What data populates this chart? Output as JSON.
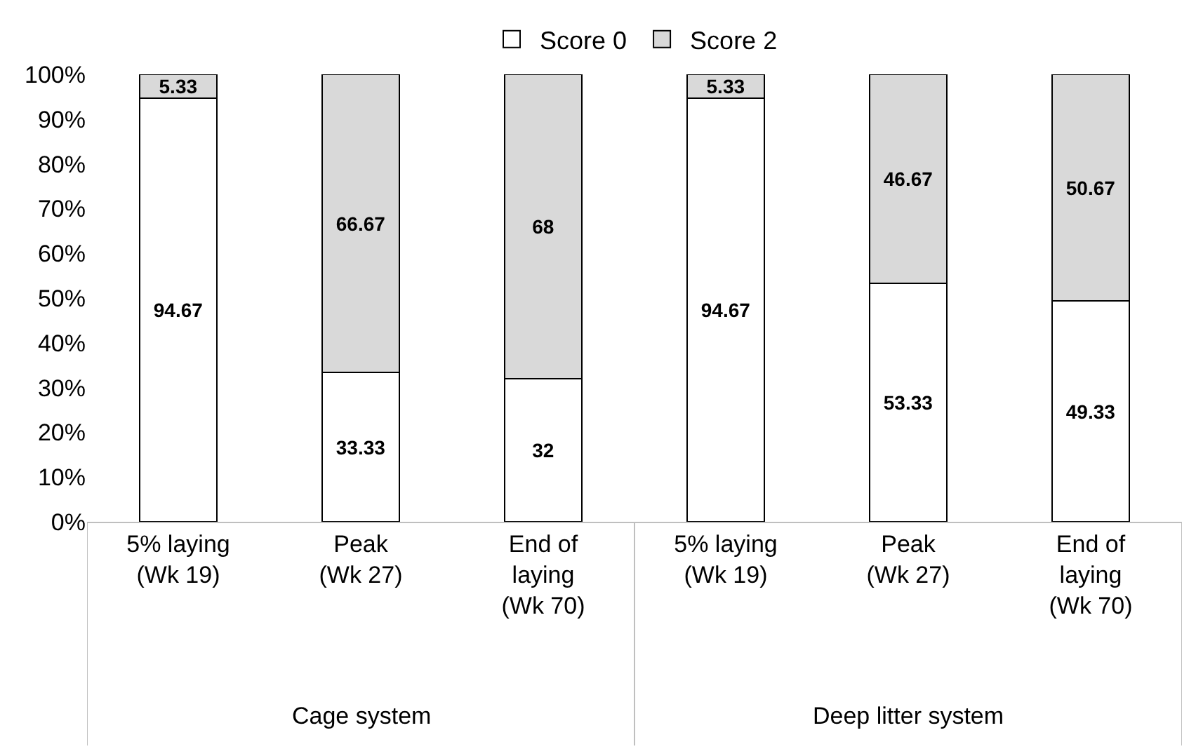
{
  "chart_data": {
    "type": "bar",
    "stacked": true,
    "data_labels": true,
    "grid": false,
    "legend": "top",
    "categories": [
      "5% laying (Wk 19)",
      "Peak (Wk 27)",
      "End of laying (Wk 70)",
      "5% laying (Wk 19)",
      "Peak (Wk 27)",
      "End of laying (Wk 70)"
    ],
    "series": [
      {
        "name": "Score 0",
        "color": "#ffffff",
        "values": [
          94.67,
          33.33,
          32,
          94.67,
          53.33,
          49.33
        ]
      },
      {
        "name": "Score 2",
        "color": "#d9d9d9",
        "values": [
          5.33,
          66.67,
          68,
          5.33,
          46.67,
          50.67
        ]
      }
    ],
    "ylim": [
      0,
      100
    ],
    "yticks": [
      {
        "value": 0,
        "label": "0%"
      },
      {
        "value": 10,
        "label": "10%"
      },
      {
        "value": 20,
        "label": "20%"
      },
      {
        "value": 30,
        "label": "30%"
      },
      {
        "value": 40,
        "label": "40%"
      },
      {
        "value": 50,
        "label": "50%"
      },
      {
        "value": 60,
        "label": "60%"
      },
      {
        "value": 70,
        "label": "70%"
      },
      {
        "value": 80,
        "label": "80%"
      },
      {
        "value": 90,
        "label": "90%"
      },
      {
        "value": 100,
        "label": "100%"
      }
    ],
    "annotations": [
      "Cage system",
      "Deep litter system"
    ]
  }
}
